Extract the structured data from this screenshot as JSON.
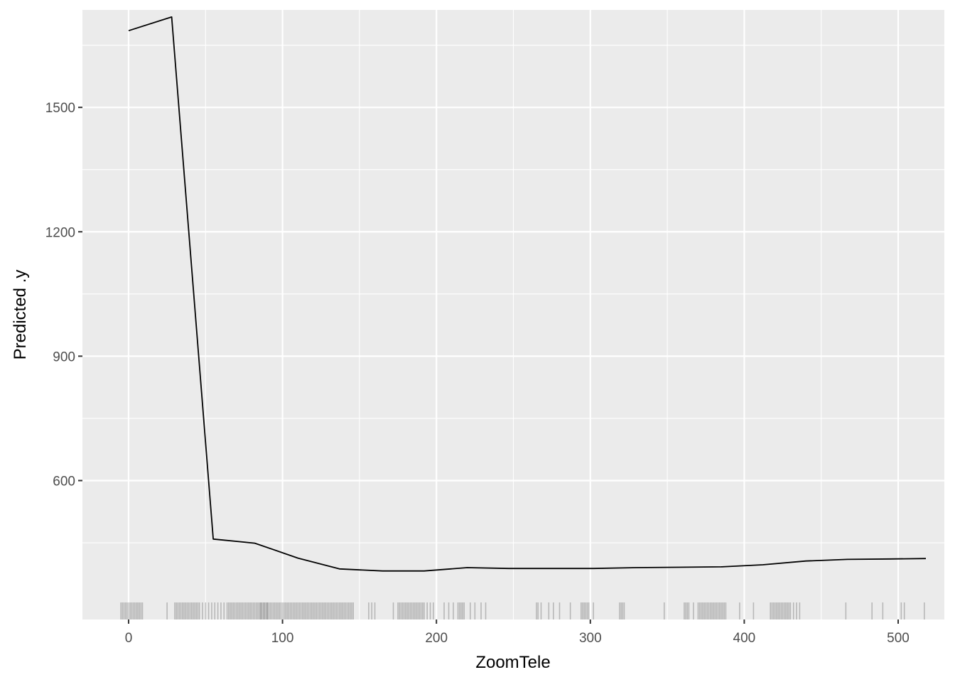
{
  "chart_data": {
    "type": "line",
    "title": "",
    "xlabel": "ZoomTele",
    "ylabel": "Predicted .y",
    "xlim": [
      -30,
      530
    ],
    "ylim": [
      265,
      1735
    ],
    "x_ticks": [
      0,
      100,
      200,
      300,
      400,
      500
    ],
    "y_ticks": [
      600,
      900,
      1200,
      1500
    ],
    "grid": true,
    "background": "#ebebeb",
    "gridline_color": "#ffffff",
    "line_color": "#000000",
    "rug_color": "#000000",
    "series": [
      {
        "x": [
          0,
          28,
          55,
          82,
          110,
          137,
          165,
          192,
          220,
          247,
          275,
          302,
          330,
          357,
          385,
          412,
          440,
          467,
          495,
          518
        ],
        "y": [
          1685,
          1718,
          459,
          449,
          413,
          387,
          382,
          382,
          390,
          388,
          388,
          388,
          390,
          391,
          392,
          397,
          406,
          410,
          411,
          412
        ]
      }
    ],
    "rug_x": [
      -5,
      -4,
      -3,
      -2,
      -1,
      0,
      1,
      2,
      3,
      4,
      5,
      6,
      7,
      8,
      9,
      25,
      30,
      31,
      32,
      33,
      34,
      35,
      36,
      37,
      38,
      39,
      40,
      41,
      42,
      43,
      44,
      45,
      46,
      48,
      50,
      52,
      54,
      56,
      58,
      60,
      62,
      64,
      65,
      66,
      67,
      68,
      69,
      70,
      71,
      72,
      73,
      74,
      75,
      76,
      77,
      78,
      79,
      80,
      81,
      82,
      83,
      84,
      86,
      88,
      90,
      85,
      86,
      87,
      88,
      89,
      90,
      91,
      92,
      93,
      94,
      95,
      96,
      97,
      98,
      99,
      100,
      101,
      102,
      103,
      104,
      105,
      106,
      107,
      108,
      109,
      110,
      111,
      112,
      113,
      114,
      115,
      116,
      117,
      118,
      119,
      120,
      121,
      122,
      123,
      124,
      125,
      126,
      127,
      128,
      129,
      130,
      131,
      132,
      133,
      134,
      135,
      136,
      137,
      138,
      139,
      140,
      141,
      142,
      143,
      144,
      145,
      146,
      156,
      158,
      160,
      172,
      175,
      176,
      177,
      178,
      179,
      180,
      181,
      182,
      183,
      184,
      185,
      186,
      187,
      188,
      189,
      190,
      191,
      192,
      194,
      196,
      198,
      205,
      208,
      211,
      214,
      215,
      216,
      217,
      218,
      222,
      225,
      229,
      232,
      265,
      266,
      268,
      273,
      276,
      280,
      287,
      294,
      295,
      296,
      297,
      298,
      299,
      302,
      319,
      320,
      321,
      322,
      348,
      361,
      362,
      363,
      364,
      367,
      370,
      371,
      372,
      373,
      374,
      375,
      376,
      377,
      378,
      379,
      380,
      381,
      382,
      383,
      384,
      385,
      386,
      387,
      388,
      397,
      406,
      417,
      418,
      419,
      420,
      421,
      422,
      423,
      424,
      425,
      426,
      427,
      428,
      429,
      430,
      432,
      434,
      436,
      466,
      483,
      490,
      502,
      504,
      517
    ]
  }
}
